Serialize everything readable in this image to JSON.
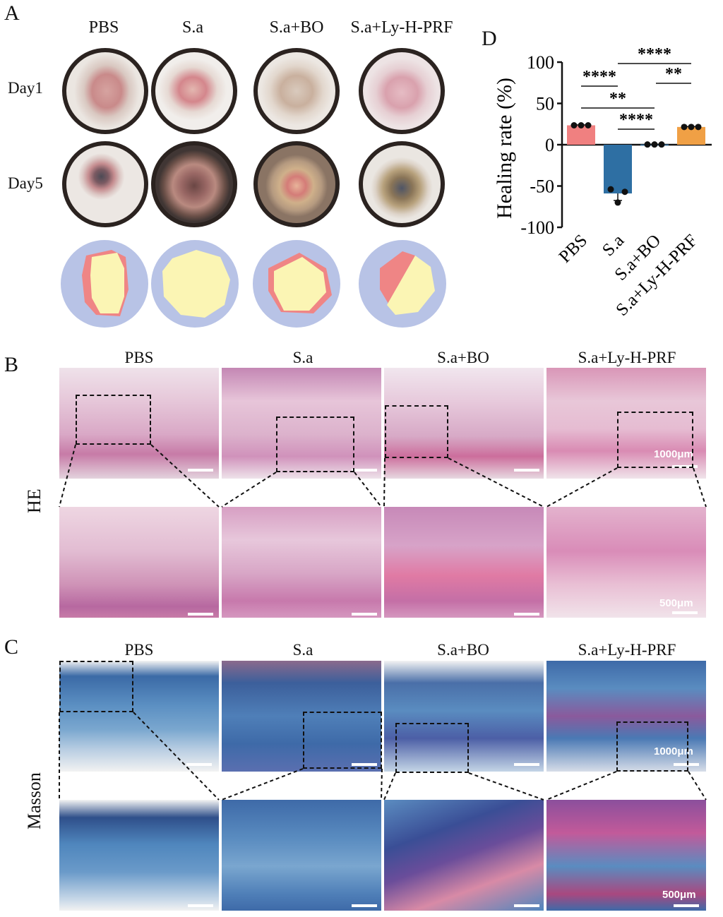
{
  "panels": {
    "a": "A",
    "b": "B",
    "c": "C",
    "d": "D"
  },
  "groups": [
    "PBS",
    "S.a",
    "S.a+BO",
    "S.a+Ly-H-PRF"
  ],
  "panel_a": {
    "rows": [
      "Day1",
      "Day5"
    ]
  },
  "panel_b": {
    "stain": "HE",
    "scale_top": "1000μm",
    "scale_bottom": "500μm"
  },
  "panel_c": {
    "stain": "Masson",
    "scale_top": "1000μm",
    "scale_bottom": "500μm"
  },
  "colors": {
    "pbs": "#f08080",
    "sa": "#2e6fa3",
    "sabo": "#2e6fa3",
    "saly": "#f0a045",
    "segment_bg": "#b8c3e6",
    "segment_red": "#ef8585",
    "segment_yellow": "#fbf5b4",
    "he_base": "#e7c3d8",
    "masson_base": "#4f86bd"
  },
  "chart_data": {
    "type": "bar",
    "ylabel": "Healing rate (%)",
    "categories": [
      "PBS",
      "S.a",
      "S.a+BO",
      "S.a+Ly-H-PRF"
    ],
    "values": [
      23.5,
      -59,
      0.3,
      21.5
    ],
    "points": [
      [
        23.5,
        23.5,
        23.5
      ],
      [
        -54,
        -70,
        -57
      ],
      [
        0.3,
        0.3,
        0.3
      ],
      [
        21.5,
        21.5,
        21.5
      ]
    ],
    "errors": [
      0.5,
      8.5,
      0.3,
      0.5
    ],
    "ylim": [
      -100,
      100
    ],
    "yticks": [
      -100,
      -50,
      0,
      50,
      100
    ],
    "significance": [
      {
        "from": 0,
        "to": 1,
        "label": "****"
      },
      {
        "from": 1,
        "to": 3,
        "label": "****"
      },
      {
        "from": 0,
        "to": 2,
        "label": "**"
      },
      {
        "from": 1,
        "to": 2,
        "label": "****"
      },
      {
        "from": 2,
        "to": 3,
        "label": "**"
      }
    ]
  }
}
